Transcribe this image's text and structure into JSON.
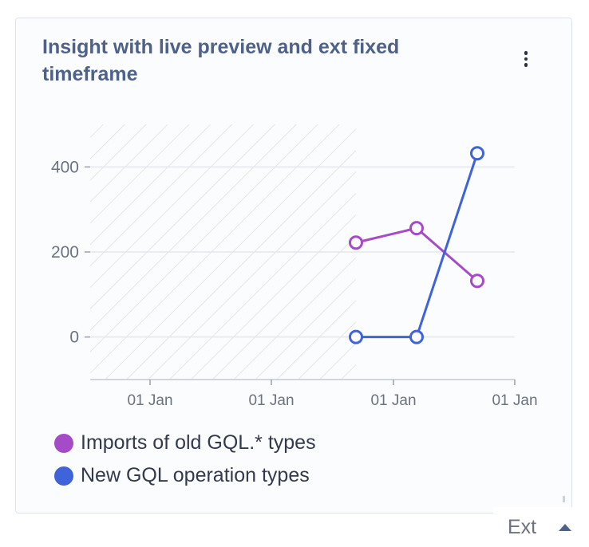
{
  "card": {
    "title": "Insight with live preview and ext fixed timeframe",
    "menu_icon": "kebab-menu-icon"
  },
  "chart_data": {
    "type": "line",
    "x_tick_labels": [
      "01 Jan",
      "01 Jan",
      "01 Jan",
      "01 Jan"
    ],
    "y_ticks": [
      0,
      200,
      400
    ],
    "ylim": [
      -100,
      500
    ],
    "grid": "horizontal",
    "legend_position": "bottom-left",
    "hatched_region": "left (before first data point)",
    "series": [
      {
        "name": "Imports of old GQL.* types",
        "color": "#a64bc8",
        "points": [
          {
            "x": 0,
            "y": 222
          },
          {
            "x": 1,
            "y": 256
          },
          {
            "x": 2,
            "y": 132
          }
        ]
      },
      {
        "name": "New GQL operation types",
        "color": "#3f63d8",
        "points": [
          {
            "x": 0,
            "y": 0
          },
          {
            "x": 1,
            "y": 0
          },
          {
            "x": 2,
            "y": 432
          }
        ]
      }
    ]
  },
  "footer": {
    "label": "Ext",
    "caret_icon": "caret-up-icon"
  }
}
